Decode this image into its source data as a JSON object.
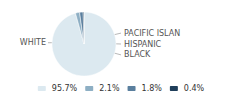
{
  "chart_data": {
    "type": "pie",
    "categories": [
      "WHITE",
      "PACIFIC ISLAN",
      "HISPANIC",
      "BLACK"
    ],
    "values": [
      95.7,
      2.1,
      1.8,
      0.4
    ],
    "value_labels": [
      "95.7%",
      "2.1%",
      "1.8%",
      "0.4%"
    ],
    "colors": [
      "#dce9f0",
      "#8eafc4",
      "#5a7f9e",
      "#1f3e5a"
    ],
    "legend": "bottom"
  }
}
